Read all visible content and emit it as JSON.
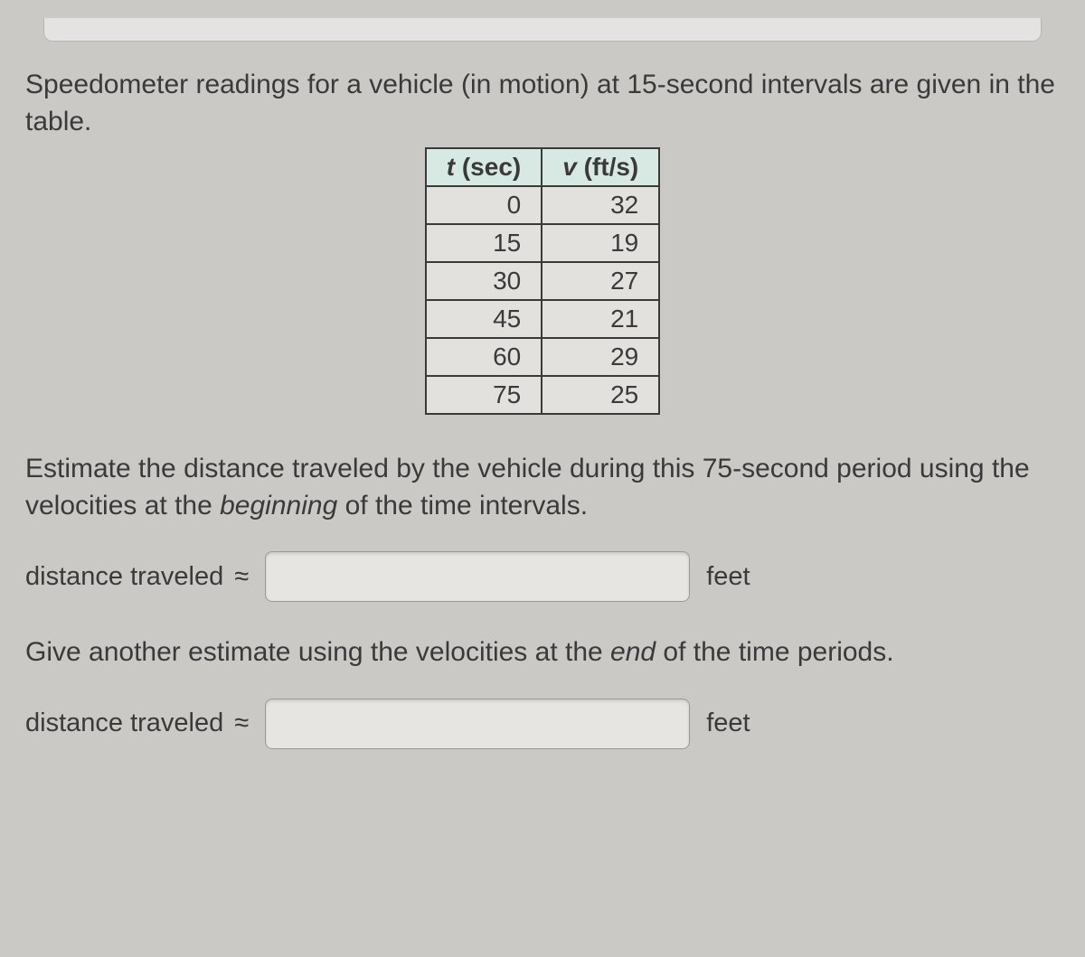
{
  "intro_text": "Speedometer readings for a vehicle (in motion) at 15-second intervals are given in the table.",
  "table": {
    "header_t_var": "t",
    "header_t_unit": " (sec)",
    "header_v_var": "v",
    "header_v_unit": " (ft/s)",
    "rows": [
      {
        "t": "0",
        "v": "32"
      },
      {
        "t": "15",
        "v": "19"
      },
      {
        "t": "30",
        "v": "27"
      },
      {
        "t": "45",
        "v": "21"
      },
      {
        "t": "60",
        "v": "29"
      },
      {
        "t": "75",
        "v": "25"
      }
    ],
    "header_bg": "#d8e8e3",
    "border_color": "#3a3a3a",
    "cell_fontsize": 28
  },
  "question1_pre": "Estimate the distance traveled by the vehicle during this 75-second period using the velocities at the ",
  "question1_em": "beginning",
  "question1_post": " of the time intervals.",
  "question2_pre": "Give another estimate using the velocities at the ",
  "question2_em": "end",
  "question2_post": " of the time periods.",
  "answer_label": "distance traveled ",
  "approx_symbol": "≈",
  "unit_label": "feet",
  "inputs": {
    "distance_beginning": "",
    "distance_end": ""
  },
  "colors": {
    "page_bg": "#cac9c6",
    "text": "#3a3a3a",
    "input_bg": "#e6e5e2",
    "input_border": "#9a9996"
  }
}
